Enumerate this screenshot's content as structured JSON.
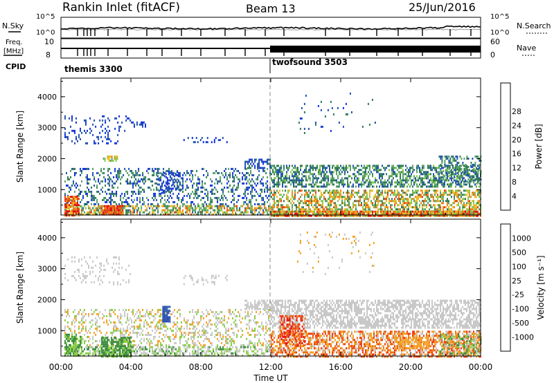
{
  "header": {
    "station": "Rankin Inlet (fitACF)",
    "beam": "Beam 13",
    "date": "25/Jun/2016"
  },
  "status_panel": {
    "nsky_label": "N.Sky",
    "nsearch_label": "N.Search",
    "nsky_ticks": [
      "10^5",
      "10^0"
    ],
    "nsearch_ticks": [
      "10^5",
      "10^0"
    ],
    "freq_label_1": "Freq.",
    "freq_label_2": "[MHz]",
    "freq_ticks": [
      "10",
      "8"
    ],
    "nave_label": "Nave",
    "nave_ticks": [
      "60",
      "0"
    ],
    "cpid_label": "CPID",
    "cpid_segments": [
      {
        "name": "themis 3300",
        "start_hour": 0
      },
      {
        "name": "twofsound 3503",
        "start_hour": 12
      }
    ]
  },
  "colors": {
    "power": [
      "#1030e0",
      "#2050b0",
      "#2e7c52",
      "#58a068",
      "#84c84a",
      "#f0b820",
      "#f08018",
      "#e84010",
      "#e01010"
    ],
    "velocity": [
      "#e01010",
      "#f03c10",
      "#f07018",
      "#f4a020",
      "#c8c8c8",
      "#88cc44",
      "#3a8a40",
      "#305ea8",
      "#2848b8"
    ]
  },
  "chart_data": [
    {
      "type": "heatmap",
      "name": "power",
      "ylabel": "Slant Range [km]",
      "yticks": [
        "1000",
        "2000",
        "3000",
        "4000"
      ],
      "y_tick_values": [
        1000,
        2000,
        3000,
        4000
      ],
      "ylim": [
        180,
        4600
      ],
      "xlim": [
        0,
        24
      ],
      "colorbar_label": "Power [dB]",
      "colorbar_ticks": [
        "4",
        "8",
        "12",
        "16",
        "20",
        "24",
        "28"
      ],
      "colorbar_range": [
        0,
        32
      ],
      "regions": [
        {
          "t": [
            0.2,
            12
          ],
          "r": [
            500,
            1700
          ],
          "d": 0.3,
          "v": [
            0,
            14
          ]
        },
        {
          "t": [
            0.2,
            12
          ],
          "r": [
            180,
            500
          ],
          "d": 0.6,
          "v": [
            6,
            26
          ]
        },
        {
          "t": [
            0.2,
            1.0
          ],
          "r": [
            180,
            800
          ],
          "d": 0.8,
          "v": [
            18,
            32
          ]
        },
        {
          "t": [
            2.3,
            3.5
          ],
          "r": [
            180,
            500
          ],
          "d": 0.9,
          "v": [
            22,
            32
          ]
        },
        {
          "t": [
            0.2,
            4.0
          ],
          "r": [
            2500,
            3400
          ],
          "d": 0.15,
          "v": [
            2,
            6
          ]
        },
        {
          "t": [
            4.0,
            4.8
          ],
          "r": [
            3000,
            3200
          ],
          "d": 0.5,
          "v": [
            2,
            6
          ]
        },
        {
          "t": [
            5.5,
            7.0
          ],
          "r": [
            900,
            1600
          ],
          "d": 0.25,
          "v": [
            2,
            6
          ]
        },
        {
          "t": [
            2.4,
            3.2
          ],
          "r": [
            1950,
            2100
          ],
          "d": 0.7,
          "v": [
            12,
            22
          ]
        },
        {
          "t": [
            7.0,
            9.5
          ],
          "r": [
            2500,
            2700
          ],
          "d": 0.2,
          "v": [
            2,
            6
          ]
        },
        {
          "t": [
            10.5,
            12
          ],
          "r": [
            1700,
            2000
          ],
          "d": 0.6,
          "v": [
            2,
            8
          ]
        },
        {
          "t": [
            12,
            24
          ],
          "r": [
            1100,
            1800
          ],
          "d": 0.55,
          "v": [
            4,
            16
          ]
        },
        {
          "t": [
            12,
            24
          ],
          "r": [
            180,
            1000
          ],
          "d": 0.55,
          "v": [
            8,
            26
          ]
        },
        {
          "t": [
            12,
            24
          ],
          "r": [
            180,
            320
          ],
          "d": 0.9,
          "v": [
            14,
            30
          ]
        },
        {
          "t": [
            21.6,
            24
          ],
          "r": [
            1200,
            2100
          ],
          "d": 0.35,
          "v": [
            4,
            14
          ]
        },
        {
          "t": [
            13.5,
            18
          ],
          "r": [
            2800,
            4200
          ],
          "d": 0.03,
          "v": [
            2,
            10
          ]
        }
      ]
    },
    {
      "type": "heatmap",
      "name": "velocity",
      "ylabel": "Slant Range [km]",
      "yticks": [
        "1000",
        "2000",
        "3000",
        "4000"
      ],
      "y_tick_values": [
        1000,
        2000,
        3000,
        4000
      ],
      "ylim": [
        180,
        4600
      ],
      "xlim": [
        0,
        24
      ],
      "xticks": [
        "00:00",
        "04:00",
        "08:00",
        "12:00",
        "16:00",
        "20:00",
        "00:00"
      ],
      "x_tick_values": [
        0,
        4,
        8,
        12,
        16,
        20,
        24
      ],
      "xlabel": "Time UT",
      "colorbar_label": "Velocity [m s⁻¹]",
      "colorbar_ticks": [
        "-1000",
        "-500",
        "-100",
        "-25",
        "25",
        "100",
        "500",
        "1000"
      ],
      "colorbar_range": [
        0,
        9
      ],
      "regions": [
        {
          "t": [
            0.2,
            12
          ],
          "r": [
            500,
            1700
          ],
          "d": 0.3,
          "v": [
            3.5,
            5.5
          ]
        },
        {
          "t": [
            0.2,
            12
          ],
          "r": [
            180,
            500
          ],
          "d": 0.55,
          "v": [
            4,
            6.5
          ]
        },
        {
          "t": [
            0.2,
            1.2
          ],
          "r": [
            180,
            900
          ],
          "d": 0.7,
          "v": [
            5,
            7
          ]
        },
        {
          "t": [
            2.3,
            4.0
          ],
          "r": [
            180,
            800
          ],
          "d": 0.8,
          "v": [
            5.5,
            7
          ]
        },
        {
          "t": [
            5.8,
            6.2
          ],
          "r": [
            1300,
            1800
          ],
          "d": 0.85,
          "v": [
            7,
            9
          ]
        },
        {
          "t": [
            0.2,
            4.0
          ],
          "r": [
            2500,
            3400
          ],
          "d": 0.15,
          "v": [
            4,
            5
          ]
        },
        {
          "t": [
            7.0,
            9.5
          ],
          "r": [
            2500,
            2800
          ],
          "d": 0.2,
          "v": [
            4,
            5
          ]
        },
        {
          "t": [
            10.5,
            12
          ],
          "r": [
            1700,
            2000
          ],
          "d": 0.6,
          "v": [
            4,
            5
          ]
        },
        {
          "t": [
            12,
            24
          ],
          "r": [
            1100,
            2000
          ],
          "d": 0.6,
          "v": [
            4,
            5
          ]
        },
        {
          "t": [
            12,
            24
          ],
          "r": [
            180,
            1000
          ],
          "d": 0.6,
          "v": [
            1,
            5
          ]
        },
        {
          "t": [
            12.5,
            14
          ],
          "r": [
            500,
            1500
          ],
          "d": 0.5,
          "v": [
            0,
            3
          ]
        },
        {
          "t": [
            19,
            21
          ],
          "r": [
            400,
            800
          ],
          "d": 0.6,
          "v": [
            3,
            4
          ]
        },
        {
          "t": [
            21.6,
            24
          ],
          "r": [
            200,
            900
          ],
          "d": 0.6,
          "v": [
            3,
            7
          ]
        },
        {
          "t": [
            13.5,
            18
          ],
          "r": [
            2800,
            4200
          ],
          "d": 0.03,
          "v": [
            3,
            5
          ]
        }
      ]
    }
  ]
}
